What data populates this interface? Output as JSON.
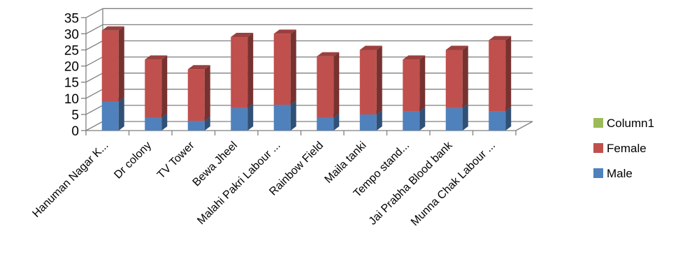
{
  "chart_data": {
    "type": "bar",
    "stacked": true,
    "three_d": true,
    "title": "",
    "xlabel": "",
    "ylabel": "",
    "ylim": [
      0,
      35
    ],
    "yticks": [
      0,
      5,
      10,
      15,
      20,
      25,
      30,
      35
    ],
    "grid": true,
    "legend_position": "right",
    "categories": [
      "Hanuman Nagar K...",
      "Dr colony",
      "TV Tower",
      "Bewa Jheel",
      "Malahi Pakri Labour ...",
      "Rainbow Field",
      "Maila tanki",
      "Tempo stand...",
      "Jai Prabha Blood bank",
      "Munna Chak Labour ..."
    ],
    "series": [
      {
        "name": "Male",
        "color": "#4F81BD",
        "values": [
          9,
          4,
          3,
          7,
          8,
          4,
          5,
          6,
          7,
          6
        ]
      },
      {
        "name": "Female",
        "color": "#C0504D",
        "values": [
          22,
          18,
          16,
          22,
          22,
          19,
          20,
          16,
          18,
          22
        ]
      },
      {
        "name": "Column1",
        "color": "#9BBB59",
        "values": [
          0,
          0,
          0,
          0,
          0,
          0,
          0,
          0,
          0,
          0
        ]
      }
    ]
  }
}
